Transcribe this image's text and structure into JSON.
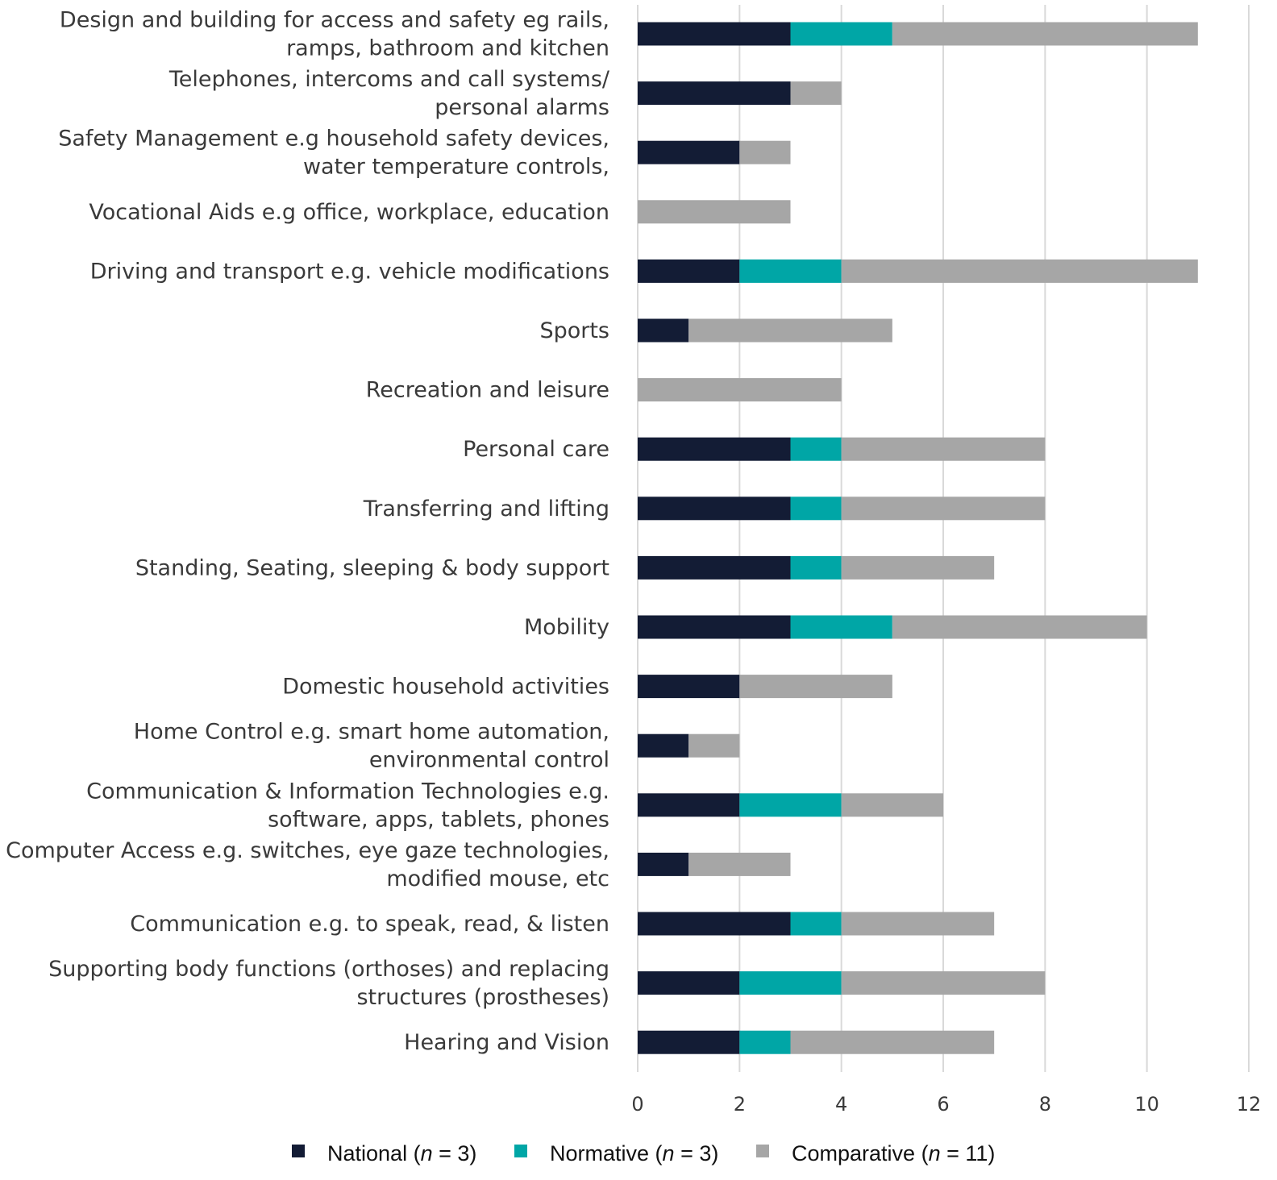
{
  "chart_data": {
    "type": "bar",
    "orientation": "horizontal",
    "stacked": true,
    "title": "",
    "xlabel": "",
    "ylabel": "",
    "xlim": [
      0,
      12
    ],
    "x_ticks": [
      0,
      2,
      4,
      6,
      8,
      10,
      12
    ],
    "grid": true,
    "legend_position": "bottom",
    "categories": [
      [
        "Design and building for access and safety eg rails,",
        "ramps, bathroom and kitchen"
      ],
      [
        "Telephones, intercoms and call systems/",
        "personal alarms"
      ],
      [
        "Safety Management e.g household safety devices,",
        "water temperature controls,"
      ],
      [
        "Vocational Aids e.g office, workplace, education"
      ],
      [
        "Driving and transport e.g. vehicle modifications"
      ],
      [
        "Sports"
      ],
      [
        "Recreation and leisure"
      ],
      [
        "Personal care"
      ],
      [
        "Transferring and lifting"
      ],
      [
        "Standing, Seating, sleeping & body support"
      ],
      [
        "Mobility"
      ],
      [
        "Domestic household activities"
      ],
      [
        "Home Control e.g. smart home automation,",
        "environmental control"
      ],
      [
        "Communication & Information Technologies e.g.",
        "software, apps, tablets, phones"
      ],
      [
        "Computer Access e.g. switches, eye gaze technologies,",
        "modified mouse, etc"
      ],
      [
        "Communication e.g. to speak, read, & listen"
      ],
      [
        "Supporting body functions (orthoses) and replacing",
        "structures (prostheses)"
      ],
      [
        "Hearing and Vision"
      ]
    ],
    "series": [
      {
        "name": "National",
        "n_label": "n",
        "n_value": "= 3)",
        "color": "#131c35",
        "values": [
          3,
          3,
          2,
          0,
          2,
          1,
          0,
          3,
          3,
          3,
          3,
          2,
          1,
          2,
          1,
          3,
          2,
          2
        ]
      },
      {
        "name": "Normative",
        "n_label": "n",
        "n_value": "= 3)",
        "color": "#00a6a6",
        "values": [
          2,
          0,
          0,
          0,
          2,
          0,
          0,
          1,
          1,
          1,
          2,
          0,
          0,
          2,
          0,
          1,
          2,
          1
        ]
      },
      {
        "name": "Comparative",
        "n_label": "n",
        "n_value": "= 11)",
        "color": "#a6a6a6",
        "values": [
          6,
          1,
          1,
          3,
          7,
          4,
          4,
          4,
          4,
          3,
          5,
          3,
          1,
          2,
          2,
          3,
          4,
          4
        ]
      }
    ]
  }
}
